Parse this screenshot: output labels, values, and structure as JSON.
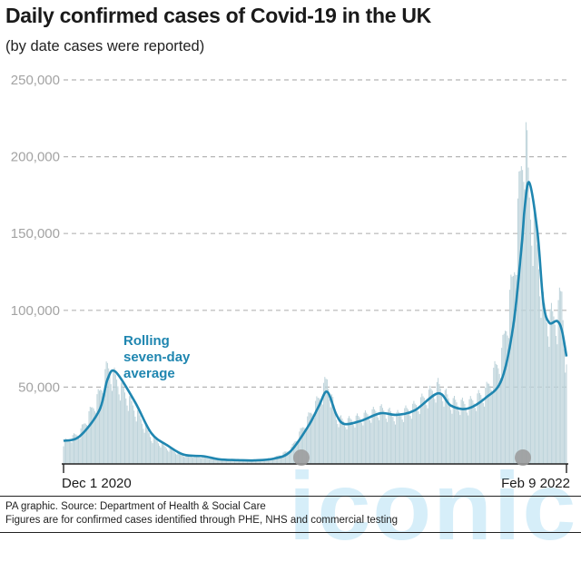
{
  "title": "Daily confirmed cases of Covid-19 in the UK",
  "subtitle": "(by date cases were reported)",
  "footer": {
    "source": "PA graphic. Source: Department of Health & Social Care",
    "note": "Figures are for confirmed cases identified through PHE, NHS and commercial testing"
  },
  "watermark": "iconic",
  "colors": {
    "bars": "#bdd3da",
    "line": "#1f86b0",
    "grid": "#b5b5b5",
    "dots": "#9a9a9a"
  },
  "chart_data": {
    "type": "bar",
    "title": "Daily confirmed cases of Covid-19 in the UK",
    "subtitle": "(by date cases were reported)",
    "ylim": [
      0,
      250000
    ],
    "yticks": [
      50000,
      100000,
      150000,
      200000,
      250000
    ],
    "ytick_labels": [
      "50,000",
      "100,000",
      "150,000",
      "200,000",
      "250,000"
    ],
    "grid": true,
    "x_range": [
      "2020-12-01",
      "2022-02-09"
    ],
    "x_tick_labels": [
      "Dec 1 2020",
      "Feb 9 2022"
    ],
    "annotation": [
      "Rolling",
      "seven-day",
      "average"
    ],
    "series": [
      {
        "name": "Rolling seven-day average",
        "kind": "line",
        "x": [
          "2020-12-01",
          "2020-12-15",
          "2021-01-01",
          "2021-01-08",
          "2021-01-15",
          "2021-02-01",
          "2021-02-15",
          "2021-03-01",
          "2021-03-15",
          "2021-04-01",
          "2021-04-15",
          "2021-05-01",
          "2021-05-15",
          "2021-06-01",
          "2021-06-15",
          "2021-07-01",
          "2021-07-10",
          "2021-07-17",
          "2021-07-25",
          "2021-08-01",
          "2021-08-15",
          "2021-09-01",
          "2021-09-15",
          "2021-10-01",
          "2021-10-21",
          "2021-11-01",
          "2021-11-15",
          "2021-12-01",
          "2021-12-15",
          "2021-12-25",
          "2022-01-01",
          "2022-01-04",
          "2022-01-08",
          "2022-01-15",
          "2022-01-20",
          "2022-01-25",
          "2022-02-01",
          "2022-02-05",
          "2022-02-09"
        ],
        "values": [
          15000,
          18000,
          35000,
          55000,
          60000,
          40000,
          20000,
          12000,
          6000,
          5000,
          3000,
          2500,
          2300,
          3500,
          8000,
          25000,
          38000,
          47000,
          32000,
          26000,
          28000,
          33000,
          32000,
          35000,
          46000,
          38000,
          36000,
          43000,
          55000,
          90000,
          140000,
          168000,
          183000,
          150000,
          105000,
          92000,
          93000,
          87000,
          70000
        ]
      },
      {
        "name": "Daily confirmed cases",
        "kind": "bar",
        "x": [
          "2020-12-01",
          "2020-12-15",
          "2021-01-01",
          "2021-01-08",
          "2021-01-15",
          "2021-02-01",
          "2021-02-15",
          "2021-03-01",
          "2021-03-15",
          "2021-04-01",
          "2021-04-15",
          "2021-05-01",
          "2021-05-15",
          "2021-06-01",
          "2021-06-15",
          "2021-07-01",
          "2021-07-10",
          "2021-07-17",
          "2021-07-25",
          "2021-08-01",
          "2021-08-15",
          "2021-09-01",
          "2021-09-15",
          "2021-10-01",
          "2021-10-21",
          "2021-11-01",
          "2021-11-15",
          "2021-12-01",
          "2021-12-15",
          "2021-12-25",
          "2022-01-01",
          "2022-01-04",
          "2022-01-08",
          "2022-01-15",
          "2022-01-20",
          "2022-01-25",
          "2022-02-01",
          "2022-02-05",
          "2022-02-09"
        ],
        "values": [
          14000,
          20000,
          45000,
          62000,
          55000,
          35000,
          17000,
          10000,
          5500,
          4500,
          2800,
          2300,
          2100,
          4000,
          9000,
          30000,
          42000,
          54000,
          30000,
          27000,
          30000,
          35000,
          31000,
          37000,
          50000,
          40000,
          38000,
          46000,
          70000,
          120000,
          190000,
          218000,
          170000,
          140000,
          100000,
          93000,
          95000,
          110000,
          60000
        ]
      }
    ]
  }
}
